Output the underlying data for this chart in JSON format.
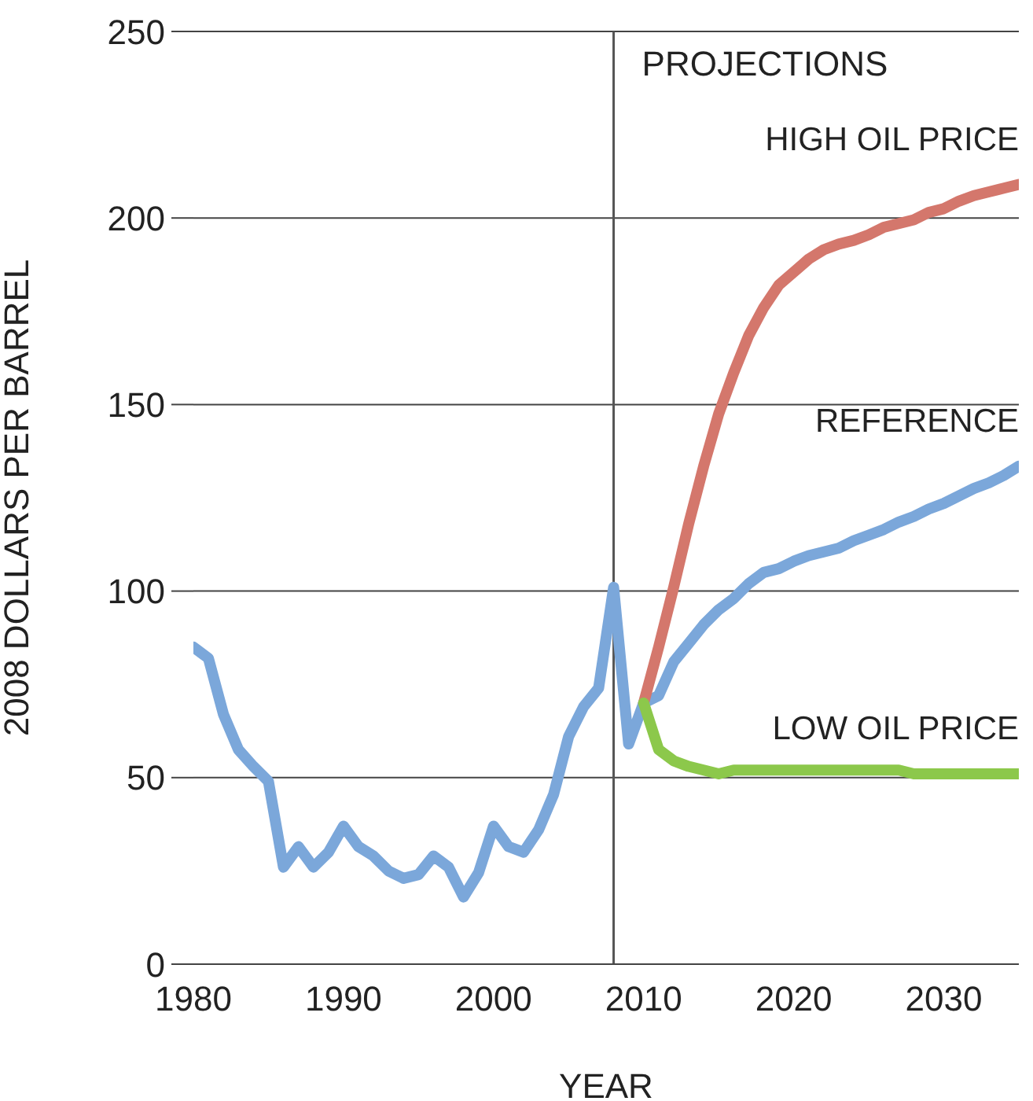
{
  "chart_data": {
    "type": "line",
    "xlabel": "YEAR",
    "ylabel": "2008 DOLLARS PER BARREL",
    "xlim": [
      1980,
      2035
    ],
    "xticks": [
      1980,
      1990,
      2000,
      2010,
      2020,
      2030
    ],
    "ylim": [
      0,
      250
    ],
    "yticks": [
      0,
      50,
      100,
      150,
      200,
      250
    ],
    "grid": "y",
    "legend": false,
    "marker": "none",
    "line_style": "solid",
    "ref_lines": [
      {
        "axis": "x",
        "value": 2008,
        "label": "PROJECTIONS",
        "color": "#555555"
      }
    ],
    "series": [
      {
        "name": "REFERENCE",
        "color": "#7ba7da",
        "x": [
          1980,
          1981,
          1982,
          1983,
          1984,
          1985,
          1986,
          1987,
          1988,
          1989,
          1990,
          1991,
          1992,
          1993,
          1994,
          1995,
          1996,
          1997,
          1998,
          1999,
          2000,
          2001,
          2002,
          2003,
          2004,
          2005,
          2006,
          2007,
          2008,
          2009,
          2010,
          2011,
          2012,
          2013,
          2014,
          2015,
          2016,
          2017,
          2018,
          2019,
          2020,
          2021,
          2022,
          2023,
          2024,
          2025,
          2026,
          2027,
          2028,
          2029,
          2030,
          2031,
          2032,
          2033,
          2034,
          2035
        ],
        "values": [
          85,
          82,
          67,
          57.5,
          53,
          49,
          26,
          31.5,
          26,
          30,
          37,
          31.5,
          29,
          25,
          23,
          24,
          29,
          26,
          18,
          24.5,
          37,
          31.5,
          30,
          36,
          45.5,
          61,
          69,
          74,
          101,
          59,
          70,
          72,
          81,
          86,
          91,
          95,
          98,
          102,
          105,
          106,
          108,
          109.5,
          110.5,
          111.5,
          113.5,
          115,
          116.5,
          118.5,
          120,
          122,
          123.5,
          125.5,
          127.5,
          129,
          131,
          133.5
        ]
      },
      {
        "name": "HIGH OIL PRICE",
        "color": "#d4776c",
        "x": [
          2010,
          2011,
          2012,
          2013,
          2014,
          2015,
          2016,
          2017,
          2018,
          2019,
          2020,
          2021,
          2022,
          2023,
          2024,
          2025,
          2026,
          2027,
          2028,
          2029,
          2030,
          2031,
          2032,
          2033,
          2034,
          2035
        ],
        "values": [
          70,
          85,
          101,
          118,
          133.5,
          147.5,
          158.5,
          168.5,
          176,
          182,
          185.5,
          189,
          191.5,
          193,
          194,
          195.5,
          197.5,
          198.5,
          199.5,
          201.5,
          202.5,
          204.5,
          206,
          207,
          208,
          209
        ]
      },
      {
        "name": "LOW OIL PRICE",
        "color": "#8cc84b",
        "x": [
          2010,
          2011,
          2012,
          2013,
          2014,
          2015,
          2016,
          2017,
          2018,
          2019,
          2020,
          2021,
          2022,
          2023,
          2024,
          2025,
          2026,
          2027,
          2028,
          2029,
          2030,
          2031,
          2032,
          2033,
          2034,
          2035
        ],
        "values": [
          70,
          57.5,
          54.5,
          53,
          52,
          51,
          52,
          52,
          52,
          52,
          52,
          52,
          52,
          52,
          52,
          52,
          52,
          52,
          51,
          51,
          51,
          51,
          51,
          51,
          51,
          51
        ]
      }
    ]
  }
}
